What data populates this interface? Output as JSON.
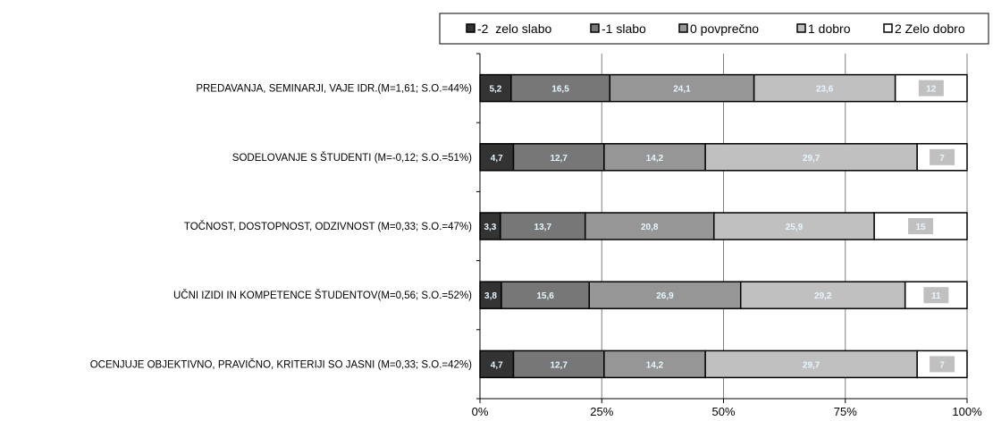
{
  "chart_data": {
    "type": "bar",
    "orientation": "horizontal",
    "stacked": true,
    "normalized_percent": true,
    "categories": [
      "PREDAVANJA, SEMINARJI, VAJE IDR.(M=1,61; S.O.=44%)",
      "SODELOVANJE S ŠTUDENTI (M=-0,12; S.O.=51%)",
      "TOČNOST, DOSTOPNOST, ODZIVNOST (M=0,33; S.O.=47%)",
      "UČNI IZIDI IN KOMPETENCE ŠTUDENTOV(M=0,56; S.O.=52%)",
      "OCENJUJE OBJEKTIVNO, PRAVIČNO, KRITERIJI SO JASNI (M=0,33; S.O.=42%)"
    ],
    "series": [
      {
        "name": "-2  zelo slabo",
        "color": "#333333",
        "values": [
          5.2,
          4.7,
          3.3,
          3.8,
          4.7
        ],
        "labels": [
          "5,2",
          "4,7",
          "3,3",
          "3,8",
          "4,7"
        ]
      },
      {
        "name": "-1 slabo",
        "color": "#777777",
        "values": [
          16.5,
          12.7,
          13.7,
          15.6,
          12.7
        ],
        "labels": [
          "16,5",
          "12,7",
          "13,7",
          "15,6",
          "12,7"
        ]
      },
      {
        "name": "0 povprečno",
        "color": "#969696",
        "values": [
          24.1,
          14.2,
          20.8,
          26.9,
          14.2
        ],
        "labels": [
          "24,1",
          "14,2",
          "20,8",
          "26,9",
          "14,2"
        ]
      },
      {
        "name": "1 dobro",
        "color": "#c0c0c0",
        "values": [
          23.6,
          29.7,
          25.9,
          29.2,
          29.7
        ],
        "labels": [
          "23,6",
          "29,7",
          "25,9",
          "29,2",
          "29,7"
        ]
      },
      {
        "name": "2 Zelo dobro",
        "color": "#ffffff",
        "values": [
          12,
          7,
          15,
          11,
          7
        ],
        "labels": [
          "12",
          "7",
          "15",
          "11",
          "7"
        ]
      }
    ],
    "x_ticks": [
      "0%",
      "25%",
      "50%",
      "75%",
      "100%"
    ],
    "xlim": [
      0,
      100
    ],
    "grid": true,
    "legend_position": "top"
  }
}
